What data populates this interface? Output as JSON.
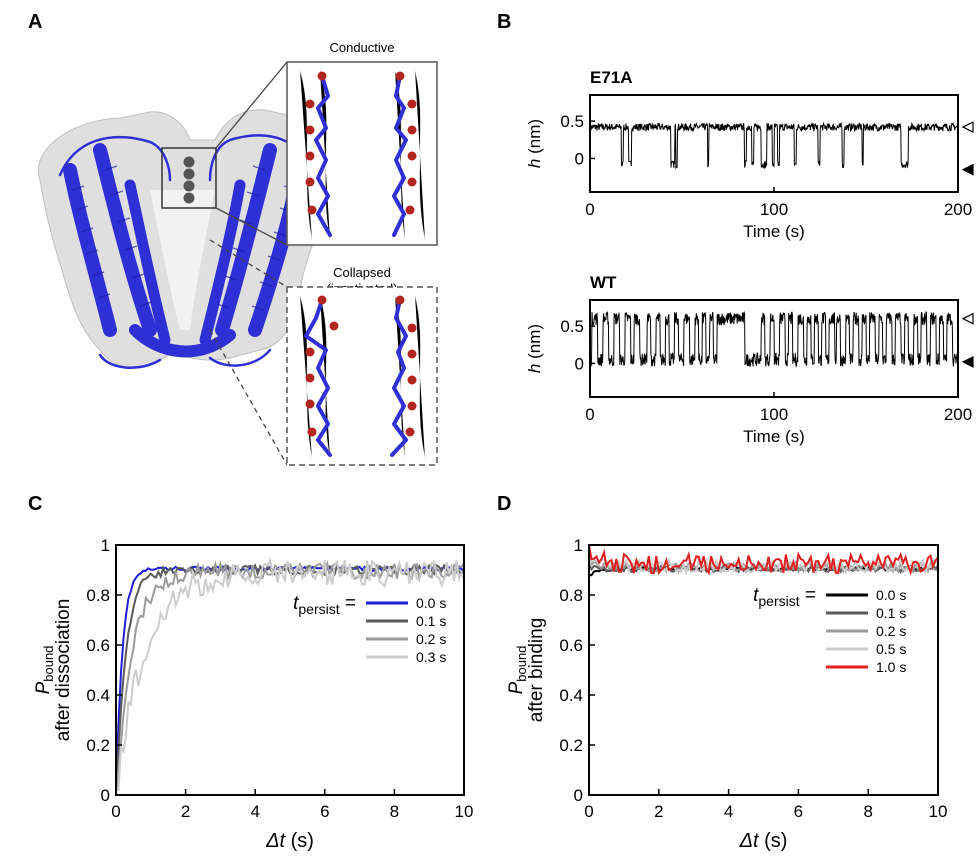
{
  "panel_letters": {
    "a": "A",
    "b": "B",
    "c": "C",
    "d": "D"
  },
  "panel_a": {
    "conductive_label": "Conductive",
    "collapsed_label": "Collapsed",
    "inactivated_label": "(inactivated)",
    "colors": {
      "helix": "#2f2fd6",
      "surface": "#d9d9d9",
      "oxygen": "#b3261e",
      "ion": "#555555"
    },
    "icons": [
      "kcsa-structure",
      "selectivity-filter-conductive",
      "selectivity-filter-collapsed",
      "potassium-ions"
    ]
  },
  "panel_b": {
    "trace_color": "#000000",
    "traces": [
      {
        "title": "E71A",
        "ylabel_var": "h",
        "ylabel_unit": " (nm)",
        "xlabel": "Time (s)",
        "xlim": [
          0,
          200
        ],
        "ylim": [
          -0.45,
          0.85
        ],
        "xticks": [
          0,
          100,
          200
        ],
        "yticks": [
          0,
          0.5
        ],
        "base_level": 0.42,
        "dwell_level": -0.08,
        "dips": [
          [
            17,
            18
          ],
          [
            21,
            22.5
          ],
          [
            44,
            46
          ],
          [
            46.5,
            47.5
          ],
          [
            64,
            64.5
          ],
          [
            84,
            85
          ],
          [
            88,
            89
          ],
          [
            93,
            96
          ],
          [
            99,
            100
          ],
          [
            102,
            103
          ],
          [
            111,
            112
          ],
          [
            124,
            125
          ],
          [
            137,
            138
          ],
          [
            148,
            148.5
          ],
          [
            169,
            173
          ]
        ],
        "markers": {
          "open": 0.42,
          "filled": -0.15
        }
      },
      {
        "title": "WT",
        "ylabel_var": "h",
        "ylabel_unit": " (nm)",
        "xlabel": "Time (s)",
        "xlim": [
          0,
          200
        ],
        "ylim": [
          -0.45,
          0.85
        ],
        "xticks": [
          0,
          100,
          200
        ],
        "yticks": [
          0,
          0.5
        ],
        "base_level": 0.05,
        "dwell_level": 0.6,
        "spikes": [
          [
            1,
            4
          ],
          [
            7,
            10
          ],
          [
            13,
            16
          ],
          [
            19,
            22
          ],
          [
            24,
            27
          ],
          [
            31,
            33
          ],
          [
            36,
            38
          ],
          [
            41,
            43
          ],
          [
            46,
            48
          ],
          [
            51,
            54
          ],
          [
            57,
            59
          ],
          [
            61,
            63
          ],
          [
            65,
            67
          ],
          [
            69,
            84
          ],
          [
            93,
            95
          ],
          [
            98,
            100
          ],
          [
            103,
            106
          ],
          [
            108,
            110
          ],
          [
            113,
            116
          ],
          [
            118,
            120
          ],
          [
            122,
            124
          ],
          [
            126,
            128
          ],
          [
            130,
            133
          ],
          [
            134,
            136
          ],
          [
            139,
            141
          ],
          [
            143,
            146
          ],
          [
            148,
            150
          ],
          [
            152,
            155
          ],
          [
            157,
            159
          ],
          [
            161,
            164
          ],
          [
            166,
            169
          ],
          [
            171,
            173
          ],
          [
            176,
            178
          ],
          [
            180,
            183
          ],
          [
            185,
            188
          ],
          [
            190,
            192
          ],
          [
            194,
            197
          ]
        ],
        "markers": {
          "open": 0.6,
          "filled": 0.02
        }
      }
    ]
  },
  "chart_data": [
    {
      "type": "line",
      "panel": "C",
      "ylabel_var": "P",
      "ylabel_sub": "bound",
      "ylabel_line2": "after dissociation",
      "xlabel_var": "Δt",
      "xlabel_unit": " (s)",
      "xlim": [
        0,
        10
      ],
      "ylim": [
        0,
        1
      ],
      "xticks": [
        0,
        2,
        4,
        6,
        8,
        10
      ],
      "yticks": [
        0,
        0.2,
        0.4,
        0.6,
        0.8,
        1
      ],
      "ytick_labels": [
        "0",
        "0.2",
        "0.4",
        "0.6",
        "0.8",
        "1"
      ],
      "legend_prefix_var": "t",
      "legend_prefix_sub": "persist",
      "legend_prefix_eq": " =",
      "series": [
        {
          "name": "0.0 s",
          "color": "#1f1fd6",
          "rise_tau": 0.18,
          "plateau": 0.905,
          "noise": 0.008
        },
        {
          "name": "0.1 s",
          "color": "#5a5a5a",
          "rise_tau": 0.28,
          "plateau": 0.9,
          "noise": 0.012
        },
        {
          "name": "0.2 s",
          "color": "#9a9a9a",
          "rise_tau": 0.45,
          "plateau": 0.895,
          "noise": 0.015
        },
        {
          "name": "0.3 s",
          "color": "#cccccc",
          "rise_tau": 0.8,
          "plateau": 0.89,
          "noise": 0.02
        }
      ]
    },
    {
      "type": "line",
      "panel": "D",
      "ylabel_var": "P",
      "ylabel_sub": "bound",
      "ylabel_line2": "after binding",
      "xlabel_var": "Δt",
      "xlabel_unit": " (s)",
      "xlim": [
        0,
        10
      ],
      "ylim": [
        0,
        1
      ],
      "xticks": [
        0,
        2,
        4,
        6,
        8,
        10
      ],
      "yticks": [
        0,
        0.2,
        0.4,
        0.6,
        0.8,
        1
      ],
      "ytick_labels": [
        "0",
        "0.2",
        "0.4",
        "0.6",
        "0.8",
        "1"
      ],
      "legend_prefix_var": "t",
      "legend_prefix_sub": "persist",
      "legend_prefix_eq": " =",
      "series": [
        {
          "name": "0.0 s",
          "color": "#000000",
          "start": 0.88,
          "plateau": 0.905,
          "noise": 0.007
        },
        {
          "name": "0.1 s",
          "color": "#5a5a5a",
          "start": 0.92,
          "plateau": 0.905,
          "noise": 0.008
        },
        {
          "name": "0.2 s",
          "color": "#9a9a9a",
          "start": 0.95,
          "plateau": 0.91,
          "noise": 0.008
        },
        {
          "name": "0.5 s",
          "color": "#cccccc",
          "start": 0.97,
          "plateau": 0.915,
          "noise": 0.009
        },
        {
          "name": "1.0 s",
          "color": "#e01f1f",
          "start": 1.0,
          "plateau": 0.925,
          "noise": 0.011
        }
      ]
    }
  ]
}
